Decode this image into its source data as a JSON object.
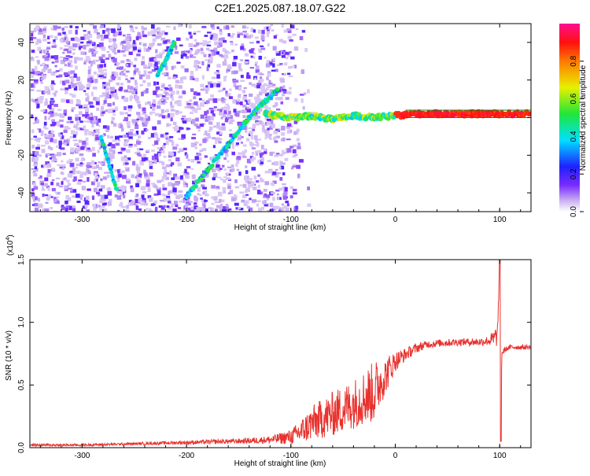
{
  "page_title": "C2E1.2025.087.18.07.G22",
  "chart_data": [
    {
      "type": "heatmap",
      "xlabel": "Height of straight line (km)",
      "ylabel": "Frequency (Hz)",
      "xlim": [
        -350,
        130
      ],
      "ylim": [
        -50,
        50
      ],
      "xticks": [
        -300,
        -200,
        -100,
        0,
        100
      ],
      "yticks": [
        -40,
        -20,
        0,
        20,
        40
      ],
      "colorbar": {
        "label": "Normalized spectral amplitude",
        "range": [
          0,
          1
        ],
        "ticks": [
          "0.0",
          "0.2",
          "0.4",
          "0.6",
          "0.8"
        ],
        "colormap": "rainbow (white → violet → blue → cyan → green → yellow → red → magenta)"
      },
      "features": [
        {
          "name": "rising tone",
          "x": [
            -200,
            -190,
            -180,
            -170,
            -160,
            -150,
            -140,
            -130,
            -120,
            -112
          ],
          "y": [
            -42,
            -35,
            -28,
            -21,
            -14,
            -7,
            0,
            6,
            11,
            15
          ]
        },
        {
          "name": "upper arc",
          "x": [
            -228,
            -222,
            -216,
            -211
          ],
          "y": [
            23,
            28,
            35,
            41
          ]
        },
        {
          "name": "lower streak",
          "x": [
            -282,
            -274,
            -266
          ],
          "y": [
            -10,
            -25,
            -40
          ]
        },
        {
          "name": "carrier band",
          "x": [
            -125,
            -100,
            -80,
            -60,
            -40,
            -20,
            0,
            20,
            40,
            60,
            80,
            100,
            130
          ],
          "y": [
            2,
            0,
            1,
            -1,
            1,
            0,
            1,
            2,
            2,
            2,
            2,
            2,
            2
          ]
        }
      ],
      "grid": false,
      "legend": "colorbar right"
    },
    {
      "type": "line",
      "xlabel": "Height of straight line (km)",
      "ylabel": "SNR (10 * v/v)",
      "y_multiplier": "(x10^4)",
      "xlim": [
        -350,
        130
      ],
      "ylim": [
        0,
        1.5
      ],
      "xticks": [
        -300,
        -200,
        -100,
        0,
        100
      ],
      "yticks": [
        "0.0",
        "0.5",
        "1.0",
        "1.5"
      ],
      "series": [
        {
          "color": "#e8322e",
          "x": [
            -350,
            -300,
            -250,
            -200,
            -150,
            -120,
            -100,
            -90,
            -80,
            -60,
            -40,
            -30,
            -20,
            -15,
            -10,
            -5,
            0,
            10,
            20,
            30,
            40,
            60,
            80,
            90,
            95,
            98,
            100,
            101,
            102,
            105,
            110,
            120,
            130
          ],
          "y": [
            0.02,
            0.02,
            0.03,
            0.04,
            0.05,
            0.06,
            0.08,
            0.12,
            0.18,
            0.25,
            0.33,
            0.38,
            0.42,
            0.5,
            0.55,
            0.62,
            0.68,
            0.74,
            0.79,
            0.82,
            0.83,
            0.84,
            0.84,
            0.85,
            0.86,
            0.9,
            1.5,
            0.05,
            0.75,
            0.78,
            0.8,
            0.8,
            0.8
          ],
          "noise": [
            0.01,
            0.01,
            0.01,
            0.015,
            0.02,
            0.03,
            0.06,
            0.1,
            0.14,
            0.18,
            0.2,
            0.22,
            0.25,
            0.2,
            0.15,
            0.12,
            0.08,
            0.05,
            0.04,
            0.03,
            0.03,
            0.03,
            0.03,
            0.04,
            0.08,
            0.1,
            0.0,
            0.0,
            0.04,
            0.02,
            0.02,
            0.02,
            0.02
          ]
        }
      ],
      "grid": false
    }
  ]
}
